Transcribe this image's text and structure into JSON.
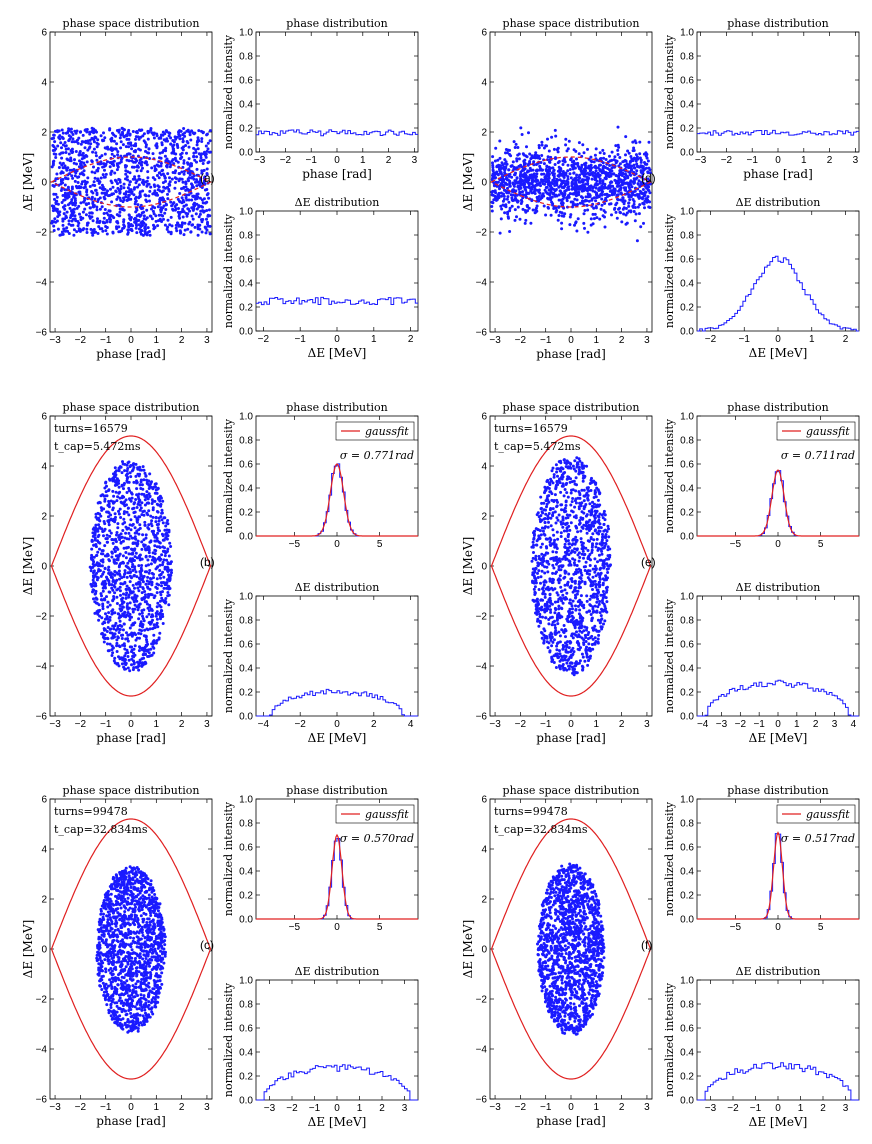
{
  "chart_data": [
    {
      "id": "a",
      "panel_label": "(a)",
      "colors": {
        "points": "#1a1aff",
        "separatrix": "#e02020",
        "hist": "#1a1aff",
        "fit": "#e02020"
      },
      "scatter": {
        "type": "scatter",
        "title": "phase space distribution",
        "xlabel": "phase [rad]",
        "ylabel": "ΔE [MeV]",
        "xlim": [
          -3.2,
          3.2
        ],
        "ylim": [
          -6,
          6
        ],
        "xticks": [
          -3,
          -2,
          -1,
          0,
          1,
          2,
          3
        ],
        "yticks": [
          -6,
          -4,
          -2,
          0,
          2,
          4,
          6
        ],
        "distribution": {
          "kind": "uniform",
          "phase_range": [
            -3.14,
            3.14
          ],
          "de_range": [
            -2.15,
            2.15
          ],
          "count": 1400
        },
        "separatrix": {
          "peak_de": 1.0,
          "style": "dashed"
        },
        "annotations": []
      },
      "phase_hist": {
        "type": "histogram",
        "title": "phase distribution",
        "xlabel": "phase [rad]",
        "ylabel": "normalized intensity",
        "xlim": [
          -3.14,
          3.14
        ],
        "ylim": [
          0,
          1.0
        ],
        "xticks": [
          -3,
          -2,
          -1,
          0,
          1,
          2,
          3
        ],
        "yticks": [
          0.0,
          0.2,
          0.4,
          0.6,
          0.8,
          1.0
        ],
        "profile": {
          "kind": "flat",
          "level": 0.16,
          "noise": 0.025
        },
        "fit": null
      },
      "de_hist": {
        "type": "histogram",
        "title": "ΔE distribution",
        "xlabel": "ΔE [MeV]",
        "ylabel": "normalized intensity",
        "xlim": [
          -2.2,
          2.2
        ],
        "ylim": [
          0,
          1.0
        ],
        "xticks": [
          -2,
          -1,
          0,
          1,
          2
        ],
        "yticks": [
          0.0,
          0.2,
          0.4,
          0.6,
          0.8,
          1.0
        ],
        "profile": {
          "kind": "flat",
          "level": 0.25,
          "noise": 0.03
        }
      }
    },
    {
      "id": "b",
      "panel_label": "(b)",
      "colors": {
        "points": "#1a1aff",
        "separatrix": "#e02020",
        "hist": "#1a1aff",
        "fit": "#e02020"
      },
      "scatter": {
        "type": "scatter",
        "title": "phase space distribution",
        "xlabel": "phase [rad]",
        "ylabel": "ΔE [MeV]",
        "xlim": [
          -3.2,
          3.2
        ],
        "ylim": [
          -6,
          6
        ],
        "xticks": [
          -3,
          -2,
          -1,
          0,
          1,
          2,
          3
        ],
        "yticks": [
          -6,
          -4,
          -2,
          0,
          2,
          4,
          6
        ],
        "distribution": {
          "kind": "ellipse",
          "a_phase": 1.6,
          "a_de": 4.2,
          "count": 1300
        },
        "separatrix": {
          "peak_de": 5.2,
          "style": "solid"
        },
        "annotations": [
          "turns=16579",
          "t_cap=5.472ms"
        ]
      },
      "phase_hist": {
        "type": "histogram",
        "title": "phase distribution",
        "xlabel": "",
        "ylabel": "normalized intensity",
        "xlim": [
          -9.5,
          9.5
        ],
        "ylim": [
          0,
          1.0
        ],
        "xticks": [
          -5,
          0,
          5
        ],
        "yticks": [
          0.0,
          0.2,
          0.4,
          0.6,
          0.8,
          1.0
        ],
        "profile": {
          "kind": "gauss",
          "peak": 0.6,
          "sigma": 0.771,
          "noise": 0.03
        },
        "fit": {
          "legend": "gaussfit",
          "sigma_label": "σ = 0.771rad"
        }
      },
      "de_hist": {
        "type": "histogram",
        "title": "ΔE distribution",
        "xlabel": "ΔE [MeV]",
        "ylabel": "normalized intensity",
        "xlim": [
          -4.4,
          4.4
        ],
        "ylim": [
          0,
          1.0
        ],
        "xticks": [
          -4,
          -2,
          0,
          2,
          4
        ],
        "yticks": [
          0.0,
          0.2,
          0.4,
          0.6,
          0.8,
          1.0
        ],
        "profile": {
          "kind": "dome",
          "peak": 0.2,
          "halfwidth": 3.6,
          "noise": 0.025
        }
      }
    },
    {
      "id": "c",
      "panel_label": "(c)",
      "colors": {
        "points": "#1a1aff",
        "separatrix": "#e02020",
        "hist": "#1a1aff",
        "fit": "#e02020"
      },
      "scatter": {
        "type": "scatter",
        "title": "phase space distribution",
        "xlabel": "phase [rad]",
        "ylabel": "ΔE [MeV]",
        "xlim": [
          -3.2,
          3.2
        ],
        "ylim": [
          -6,
          6
        ],
        "xticks": [
          -3,
          -2,
          -1,
          0,
          1,
          2,
          3
        ],
        "yticks": [
          -6,
          -4,
          -2,
          0,
          2,
          4,
          6
        ],
        "distribution": {
          "kind": "ellipse",
          "a_phase": 1.35,
          "a_de": 3.3,
          "count": 1500
        },
        "separatrix": {
          "peak_de": 5.2,
          "style": "solid"
        },
        "annotations": [
          "turns=99478",
          "t_cap=32.834ms"
        ]
      },
      "phase_hist": {
        "type": "histogram",
        "title": "phase distribution",
        "xlabel": "",
        "ylabel": "normalized intensity",
        "xlim": [
          -9.5,
          9.5
        ],
        "ylim": [
          0,
          1.0
        ],
        "xticks": [
          -5,
          0,
          5
        ],
        "yticks": [
          0.0,
          0.2,
          0.4,
          0.6,
          0.8,
          1.0
        ],
        "profile": {
          "kind": "gauss",
          "peak": 0.7,
          "sigma": 0.57,
          "noise": 0.03
        },
        "fit": {
          "legend": "gaussfit",
          "sigma_label": "σ = 0.570rad"
        }
      },
      "de_hist": {
        "type": "histogram",
        "title": "ΔE distribution",
        "xlabel": "ΔE [MeV]",
        "ylabel": "normalized intensity",
        "xlim": [
          -3.6,
          3.6
        ],
        "ylim": [
          0,
          1.0
        ],
        "xticks": [
          -3,
          -2,
          -1,
          0,
          1,
          2,
          3
        ],
        "yticks": [
          0.0,
          0.2,
          0.4,
          0.6,
          0.8,
          1.0
        ],
        "profile": {
          "kind": "dome",
          "peak": 0.27,
          "halfwidth": 3.3,
          "noise": 0.03
        }
      }
    },
    {
      "id": "d",
      "panel_label": "(d)",
      "colors": {
        "points": "#1a1aff",
        "separatrix": "#e02020",
        "hist": "#1a1aff",
        "fit": "#e02020"
      },
      "scatter": {
        "type": "scatter",
        "title": "phase space distribution",
        "xlabel": "phase [rad]",
        "ylabel": "ΔE [MeV]",
        "xlim": [
          -3.2,
          3.2
        ],
        "ylim": [
          -6,
          6
        ],
        "xticks": [
          -3,
          -2,
          -1,
          0,
          1,
          2,
          3
        ],
        "yticks": [
          -6,
          -4,
          -2,
          0,
          2,
          4,
          6
        ],
        "distribution": {
          "kind": "gauss_band",
          "phase_range": [
            -3.14,
            3.14
          ],
          "de_sigma": 0.7,
          "count": 1400
        },
        "separatrix": {
          "peak_de": 1.0,
          "style": "dashed"
        },
        "annotations": []
      },
      "phase_hist": {
        "type": "histogram",
        "title": "phase distribution",
        "xlabel": "phase [rad]",
        "ylabel": "normalized intensity",
        "xlim": [
          -3.14,
          3.14
        ],
        "ylim": [
          0,
          1.0
        ],
        "xticks": [
          -3,
          -2,
          -1,
          0,
          1,
          2,
          3
        ],
        "yticks": [
          0.0,
          0.2,
          0.4,
          0.6,
          0.8,
          1.0
        ],
        "profile": {
          "kind": "flat",
          "level": 0.16,
          "noise": 0.02
        },
        "fit": null
      },
      "de_hist": {
        "type": "histogram",
        "title": "ΔE distribution",
        "xlabel": "ΔE [MeV]",
        "ylabel": "normalized intensity",
        "xlim": [
          -2.4,
          2.4
        ],
        "ylim": [
          0,
          1.0
        ],
        "xticks": [
          -2,
          -1,
          0,
          1,
          2
        ],
        "yticks": [
          0.0,
          0.2,
          0.4,
          0.6,
          0.8,
          1.0
        ],
        "profile": {
          "kind": "gauss",
          "peak": 0.6,
          "sigma": 0.75,
          "noise": 0.04
        }
      }
    },
    {
      "id": "e",
      "panel_label": "(e)",
      "colors": {
        "points": "#1a1aff",
        "separatrix": "#e02020",
        "hist": "#1a1aff",
        "fit": "#e02020"
      },
      "scatter": {
        "type": "scatter",
        "title": "phase space distribution",
        "xlabel": "phase [rad]",
        "ylabel": "ΔE [MeV]",
        "xlim": [
          -3.2,
          3.2
        ],
        "ylim": [
          -6,
          6
        ],
        "xticks": [
          -3,
          -2,
          -1,
          0,
          1,
          2,
          3
        ],
        "yticks": [
          -6,
          -4,
          -2,
          0,
          2,
          4,
          6
        ],
        "distribution": {
          "kind": "ellipse",
          "a_phase": 1.55,
          "a_de": 4.3,
          "count": 1300
        },
        "separatrix": {
          "peak_de": 5.2,
          "style": "solid"
        },
        "annotations": [
          "turns=16579",
          "t_cap=5.472ms"
        ]
      },
      "phase_hist": {
        "type": "histogram",
        "title": "phase distribution",
        "xlabel": "",
        "ylabel": "normalized intensity",
        "xlim": [
          -9.5,
          9.5
        ],
        "ylim": [
          0,
          1.0
        ],
        "xticks": [
          -5,
          0,
          5
        ],
        "yticks": [
          0.0,
          0.2,
          0.4,
          0.6,
          0.8,
          1.0
        ],
        "profile": {
          "kind": "gauss",
          "peak": 0.55,
          "sigma": 0.711,
          "noise": 0.03
        },
        "fit": {
          "legend": "gaussfit",
          "sigma_label": "σ = 0.711rad"
        }
      },
      "de_hist": {
        "type": "histogram",
        "title": "ΔE distribution",
        "xlabel": "ΔE [MeV]",
        "ylabel": "normalized intensity",
        "xlim": [
          -4.3,
          4.3
        ],
        "ylim": [
          0,
          1.0
        ],
        "xticks": [
          -4,
          -3,
          -2,
          -1,
          0,
          1,
          2,
          3,
          4
        ],
        "yticks": [
          0.0,
          0.2,
          0.4,
          0.6,
          0.8,
          1.0
        ],
        "profile": {
          "kind": "dome",
          "peak": 0.27,
          "halfwidth": 3.8,
          "noise": 0.03
        }
      }
    },
    {
      "id": "f",
      "panel_label": "(f)",
      "colors": {
        "points": "#1a1aff",
        "separatrix": "#e02020",
        "hist": "#1a1aff",
        "fit": "#e02020"
      },
      "scatter": {
        "type": "scatter",
        "title": "phase space distribution",
        "xlabel": "phase [rad]",
        "ylabel": "ΔE [MeV]",
        "xlim": [
          -3.2,
          3.2
        ],
        "ylim": [
          -6,
          6
        ],
        "xticks": [
          -3,
          -2,
          -1,
          0,
          1,
          2,
          3
        ],
        "yticks": [
          -6,
          -4,
          -2,
          0,
          2,
          4,
          6
        ],
        "distribution": {
          "kind": "ellipse",
          "a_phase": 1.3,
          "a_de": 3.4,
          "count": 1500
        },
        "separatrix": {
          "peak_de": 5.2,
          "style": "solid"
        },
        "annotations": [
          "turns=99478",
          "t_cap=32.834ms"
        ]
      },
      "phase_hist": {
        "type": "histogram",
        "title": "phase distribution",
        "xlabel": "",
        "ylabel": "normalized intensity",
        "xlim": [
          -9.5,
          9.5
        ],
        "ylim": [
          0,
          1.0
        ],
        "xticks": [
          -5,
          0,
          5
        ],
        "yticks": [
          0.0,
          0.2,
          0.4,
          0.6,
          0.8,
          1.0
        ],
        "profile": {
          "kind": "gauss",
          "peak": 0.72,
          "sigma": 0.517,
          "noise": 0.03
        },
        "fit": {
          "legend": "gaussfit",
          "sigma_label": "σ = 0.517rad"
        }
      },
      "de_hist": {
        "type": "histogram",
        "title": "ΔE distribution",
        "xlabel": "ΔE [MeV]",
        "ylabel": "normalized intensity",
        "xlim": [
          -3.6,
          3.6
        ],
        "ylim": [
          0,
          1.0
        ],
        "xticks": [
          -3,
          -2,
          -1,
          0,
          1,
          2,
          3
        ],
        "yticks": [
          0.0,
          0.2,
          0.4,
          0.6,
          0.8,
          1.0
        ],
        "profile": {
          "kind": "dome",
          "peak": 0.28,
          "halfwidth": 3.3,
          "noise": 0.035
        }
      }
    }
  ]
}
